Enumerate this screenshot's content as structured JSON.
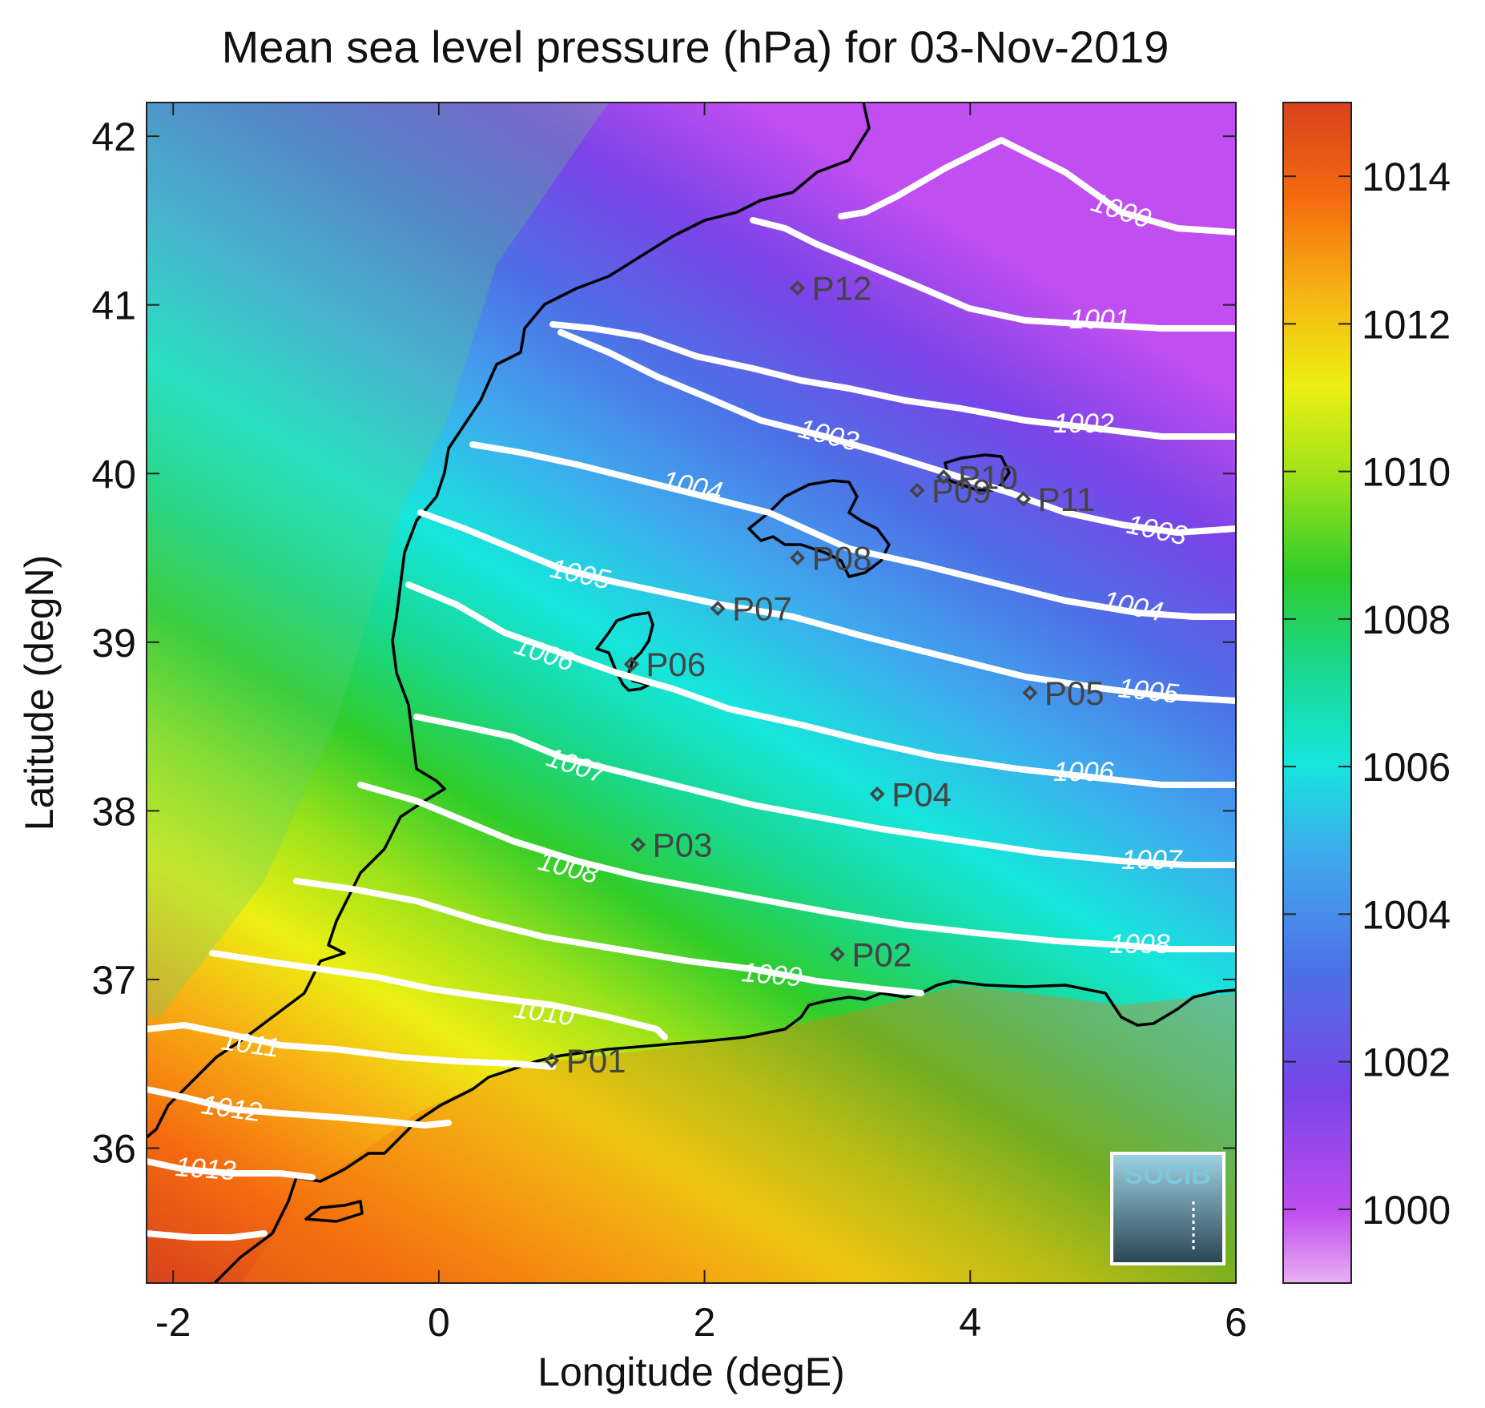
{
  "title": "Mean sea level pressure (hPa) for 03-Nov-2019",
  "xlabel": "Longitude (degE)",
  "ylabel": "Latitude (degN)",
  "x_ticks": [
    "-2",
    "0",
    "2",
    "4",
    "6"
  ],
  "y_ticks": [
    "42",
    "41",
    "40",
    "39",
    "38",
    "37",
    "36"
  ],
  "colorbar_ticks": [
    "1014",
    "1012",
    "1010",
    "1008",
    "1006",
    "1004",
    "1002",
    "1000"
  ],
  "colorbar_colors": [
    "#d8421e",
    "#f56a0f",
    "#f7a513",
    "#f3ee10",
    "#9be21a",
    "#2fcc2b",
    "#18d890",
    "#16e6dc",
    "#3fa8ee",
    "#4e6fe6",
    "#7a44e8",
    "#b84df0",
    "#e8b0f2"
  ],
  "logo_text": "SOCIB",
  "contour_labels": [
    "1000",
    "1001",
    "1002",
    "1003",
    "1003",
    "1004",
    "1004",
    "1005",
    "1005",
    "1006",
    "1006",
    "1007",
    "1007",
    "1008",
    "1008",
    "1009",
    "1010",
    "1011",
    "1012",
    "1013"
  ],
  "stations": [
    "P01",
    "P02",
    "P03",
    "P04",
    "P05",
    "P06",
    "P07",
    "P08",
    "P09",
    "P10",
    "P11",
    "P12"
  ],
  "chart_data": {
    "type": "heatmap",
    "title": "Mean sea level pressure (hPa) for 03-Nov-2019",
    "xlabel": "Longitude (degE)",
    "ylabel": "Latitude (degN)",
    "xlim": [
      -2.2,
      6
    ],
    "ylim": [
      35.2,
      42.2
    ],
    "colorbar_range": [
      999,
      1015
    ],
    "contour_levels": [
      1000,
      1001,
      1002,
      1003,
      1004,
      1005,
      1006,
      1007,
      1008,
      1009,
      1010,
      1011,
      1012,
      1013
    ],
    "stations": [
      {
        "name": "P01",
        "lon": 0.85,
        "lat": 36.52
      },
      {
        "name": "P02",
        "lon": 3.0,
        "lat": 37.15
      },
      {
        "name": "P03",
        "lon": 1.5,
        "lat": 37.8
      },
      {
        "name": "P04",
        "lon": 3.3,
        "lat": 38.1
      },
      {
        "name": "P05",
        "lon": 4.45,
        "lat": 38.7
      },
      {
        "name": "P06",
        "lon": 1.45,
        "lat": 38.87
      },
      {
        "name": "P07",
        "lon": 2.1,
        "lat": 39.2
      },
      {
        "name": "P08",
        "lon": 2.7,
        "lat": 39.5
      },
      {
        "name": "P09",
        "lon": 3.6,
        "lat": 39.9
      },
      {
        "name": "P10",
        "lon": 3.8,
        "lat": 39.98
      },
      {
        "name": "P11",
        "lon": 4.4,
        "lat": 39.85
      },
      {
        "name": "P12",
        "lon": 2.7,
        "lat": 41.1
      }
    ]
  }
}
